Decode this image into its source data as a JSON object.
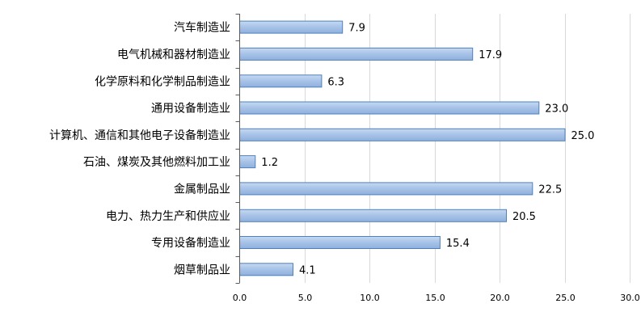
{
  "chart_data": {
    "type": "bar",
    "orientation": "horizontal",
    "categories": [
      "汽车制造业",
      "电气机械和器材制造业",
      "化学原料和化学制品制造业",
      "通用设备制造业",
      "计算机、通信和其他电子设备制造业",
      "石油、煤炭及其他燃料加工业",
      "金属制品业",
      "电力、热力生产和供应业",
      "专用设备制造业",
      "烟草制品业"
    ],
    "values": [
      7.9,
      17.9,
      6.3,
      23.0,
      25.0,
      1.2,
      22.5,
      20.5,
      15.4,
      4.1
    ],
    "data_labels": [
      "7.9",
      "17.9",
      "6.3",
      "23.0",
      "25.0",
      "1.2",
      "22.5",
      "20.5",
      "15.4",
      "4.1"
    ],
    "xlim": [
      0,
      30
    ],
    "x_ticks": [
      "0.0",
      "5.0",
      "10.0",
      "15.0",
      "20.0",
      "25.0",
      "30.0"
    ],
    "grid": "vertical",
    "legend": "none",
    "bar_color": "#a7c2e8",
    "bar_border_color": "#4f81bd"
  }
}
